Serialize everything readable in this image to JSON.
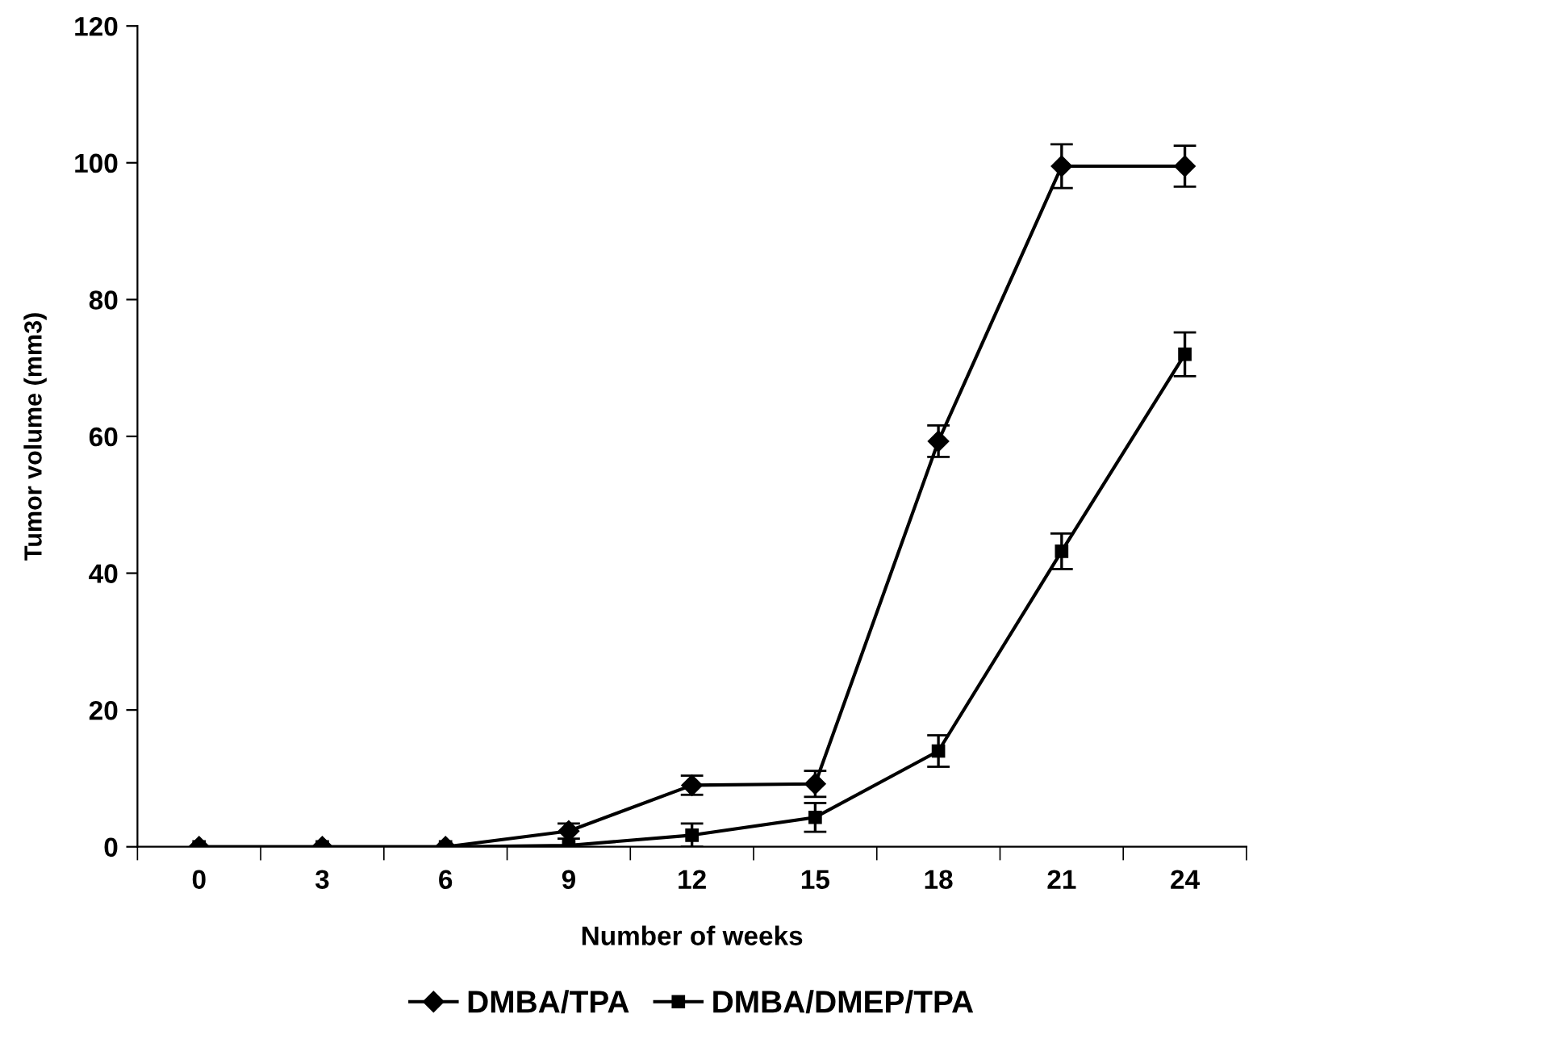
{
  "chart_data": {
    "type": "line",
    "xlabel": "Number of weeks",
    "ylabel": "Tumor volume (mm3)",
    "categories": [
      "0",
      "3",
      "6",
      "9",
      "12",
      "15",
      "18",
      "21",
      "24"
    ],
    "series": [
      {
        "name": "DMBA/TPA",
        "color": "#000000",
        "marker": "diamond",
        "values": [
          0,
          0,
          0,
          2.3,
          9.0,
          9.2,
          59.3,
          99.5,
          99.5
        ],
        "errors": [
          null,
          null,
          null,
          1.1,
          1.4,
          1.9,
          2.3,
          3.2,
          3
        ]
      },
      {
        "name": "DMBA/DMEP/TPA",
        "color": "#000000",
        "marker": "square",
        "values": [
          0,
          0,
          0,
          0.2,
          1.7,
          4.3,
          14.0,
          43.2,
          72
        ],
        "errors": [
          null,
          null,
          null,
          null,
          1.7,
          2.1,
          2.3,
          2.6,
          3.2
        ]
      }
    ],
    "ylim": [
      0,
      120
    ],
    "yticks": [
      0,
      20,
      40,
      60,
      80,
      100,
      120
    ],
    "grid": false,
    "legend": "bottom",
    "line_style": "solid"
  }
}
